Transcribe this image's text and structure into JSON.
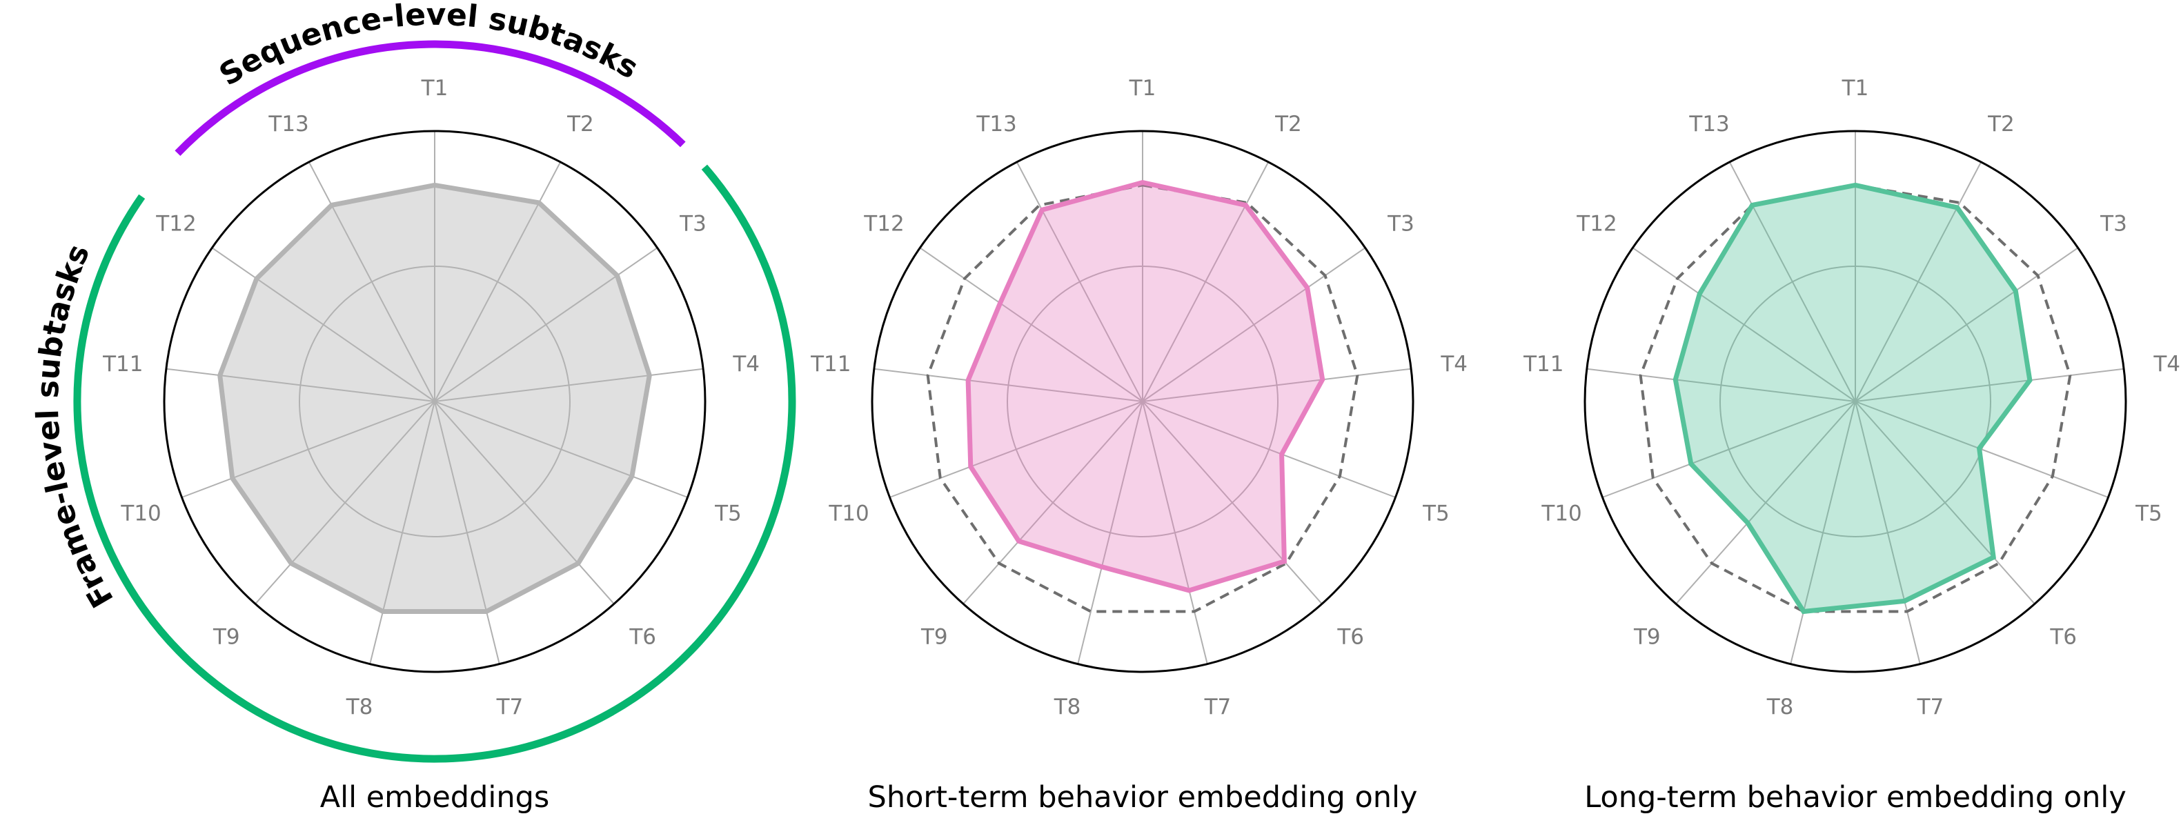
{
  "colors": {
    "reference": "#b4b4b4",
    "short_term": "#e77fc0",
    "long_term": "#55c29a",
    "sequence_group": "#a20df2",
    "frame_group": "#06b56f",
    "grid": "#b0b0b0",
    "outer_circle": "#000000",
    "dashed_reference": "#6e6e6e"
  },
  "group_labels": {
    "sequence_level": "Sequence-level subtasks",
    "frame_level": "Frame-level subtasks"
  },
  "chart_data": [
    {
      "type": "radar",
      "title": "All embeddings",
      "axes": [
        "T1",
        "T2",
        "T3",
        "T4",
        "T5",
        "T6",
        "T7",
        "T8",
        "T9",
        "T10",
        "T11",
        "T12",
        "T13"
      ],
      "rlim": [
        0,
        1
      ],
      "grid_rings": [
        0.5
      ],
      "series": [
        {
          "values": [
            0.8,
            0.83,
            0.82,
            0.8,
            0.78,
            0.8,
            0.8,
            0.8,
            0.8,
            0.8,
            0.8,
            0.8,
            0.82
          ],
          "color_key": "reference",
          "style": "solid-filled"
        }
      ]
    },
    {
      "type": "radar",
      "title": "Short-term behavior embedding only",
      "axes": [
        "T1",
        "T2",
        "T3",
        "T4",
        "T5",
        "T6",
        "T7",
        "T8",
        "T9",
        "T10",
        "T11",
        "T12",
        "T13"
      ],
      "rlim": [
        0,
        1
      ],
      "grid_rings": [
        0.5
      ],
      "series": [
        {
          "values": [
            0.8,
            0.83,
            0.82,
            0.8,
            0.78,
            0.8,
            0.8,
            0.8,
            0.8,
            0.8,
            0.8,
            0.8,
            0.82
          ],
          "color_key": "dashed_reference",
          "style": "dashed"
        },
        {
          "values": [
            0.81,
            0.82,
            0.74,
            0.67,
            0.55,
            0.79,
            0.72,
            0.63,
            0.69,
            0.68,
            0.65,
            0.64,
            0.8
          ],
          "color_key": "short_term",
          "style": "solid-filled"
        }
      ]
    },
    {
      "type": "radar",
      "title": "Long-term behavior embedding only",
      "axes": [
        "T1",
        "T2",
        "T3",
        "T4",
        "T5",
        "T6",
        "T7",
        "T8",
        "T9",
        "T10",
        "T11",
        "T12",
        "T13"
      ],
      "rlim": [
        0,
        1
      ],
      "grid_rings": [
        0.5
      ],
      "series": [
        {
          "values": [
            0.8,
            0.83,
            0.82,
            0.8,
            0.78,
            0.8,
            0.8,
            0.8,
            0.8,
            0.8,
            0.8,
            0.8,
            0.82
          ],
          "color_key": "dashed_reference",
          "style": "dashed"
        },
        {
          "values": [
            0.8,
            0.81,
            0.72,
            0.65,
            0.49,
            0.77,
            0.76,
            0.8,
            0.6,
            0.65,
            0.67,
            0.7,
            0.82
          ],
          "color_key": "long_term",
          "style": "solid-filled"
        }
      ]
    }
  ]
}
